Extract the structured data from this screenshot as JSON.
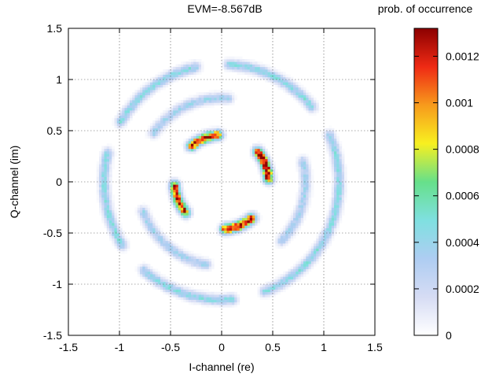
{
  "chart_data": {
    "type": "heatmap",
    "title": "EVM=-8.567dB",
    "xlabel": "I-channel (re)",
    "ylabel": "Q-channel (im)",
    "xlim": [
      -1.5,
      1.5
    ],
    "ylim": [
      -1.5,
      1.5
    ],
    "x_ticks": [
      -1.5,
      -1,
      -0.5,
      0,
      0.5,
      1,
      1.5
    ],
    "y_ticks": [
      -1.5,
      -1,
      -0.5,
      0,
      0.5,
      1,
      1.5
    ],
    "x_tick_labels": [
      "-1.5",
      "-1",
      "-0.5",
      "0",
      "0.5",
      "1",
      "1.5"
    ],
    "y_tick_labels": [
      "-1.5",
      "-1",
      "-0.5",
      "0",
      "0.5",
      "1",
      "1.5"
    ],
    "grid": true,
    "colorbar": {
      "label": "prob. of occurrence",
      "range": [
        0,
        0.00132
      ],
      "ticks": [
        0,
        0.0002,
        0.0004,
        0.0006,
        0.0008,
        0.001,
        0.0012
      ],
      "tick_labels": [
        "0",
        "0.0002",
        "0.0004",
        "0.0006",
        "0.0008",
        "0.001",
        "0.0012"
      ],
      "colors": [
        "#ffffff",
        "#d6dcf4",
        "#aecdf2",
        "#7fe0e0",
        "#66e08a",
        "#f8f020",
        "#f79a1c",
        "#ef2a14",
        "#8c0000"
      ]
    },
    "inner_ring": {
      "radius": 0.46,
      "clusters": [
        {
          "angle_deg": 22,
          "arc_deg": 34,
          "peak": 0.00132
        },
        {
          "angle_deg": 112,
          "arc_deg": 34,
          "peak": 0.0012
        },
        {
          "angle_deg": 202,
          "arc_deg": 34,
          "peak": 0.0012
        },
        {
          "angle_deg": 292,
          "arc_deg": 34,
          "peak": 0.00132
        }
      ]
    },
    "outer_ring": {
      "radius": 1.15,
      "clusters": [
        {
          "angle_deg": 0,
          "arc_deg": 46,
          "peak": 0.00044
        },
        {
          "angle_deg": 63,
          "arc_deg": 46,
          "peak": 0.00044
        },
        {
          "angle_deg": 126,
          "arc_deg": 46,
          "peak": 0.00044
        },
        {
          "angle_deg": 189,
          "arc_deg": 46,
          "peak": 0.00044
        },
        {
          "angle_deg": 252,
          "arc_deg": 46,
          "peak": 0.00044
        },
        {
          "angle_deg": 315,
          "arc_deg": 46,
          "peak": 0.00044
        }
      ]
    },
    "middle_ring": {
      "radius": 0.82,
      "clusters": [
        {
          "angle_deg": 115,
          "arc_deg": 58,
          "peak": 0.00036
        },
        {
          "angle_deg": 230,
          "arc_deg": 58,
          "peak": 0.00036
        },
        {
          "angle_deg": 345,
          "arc_deg": 58,
          "peak": 0.00036
        }
      ]
    }
  }
}
